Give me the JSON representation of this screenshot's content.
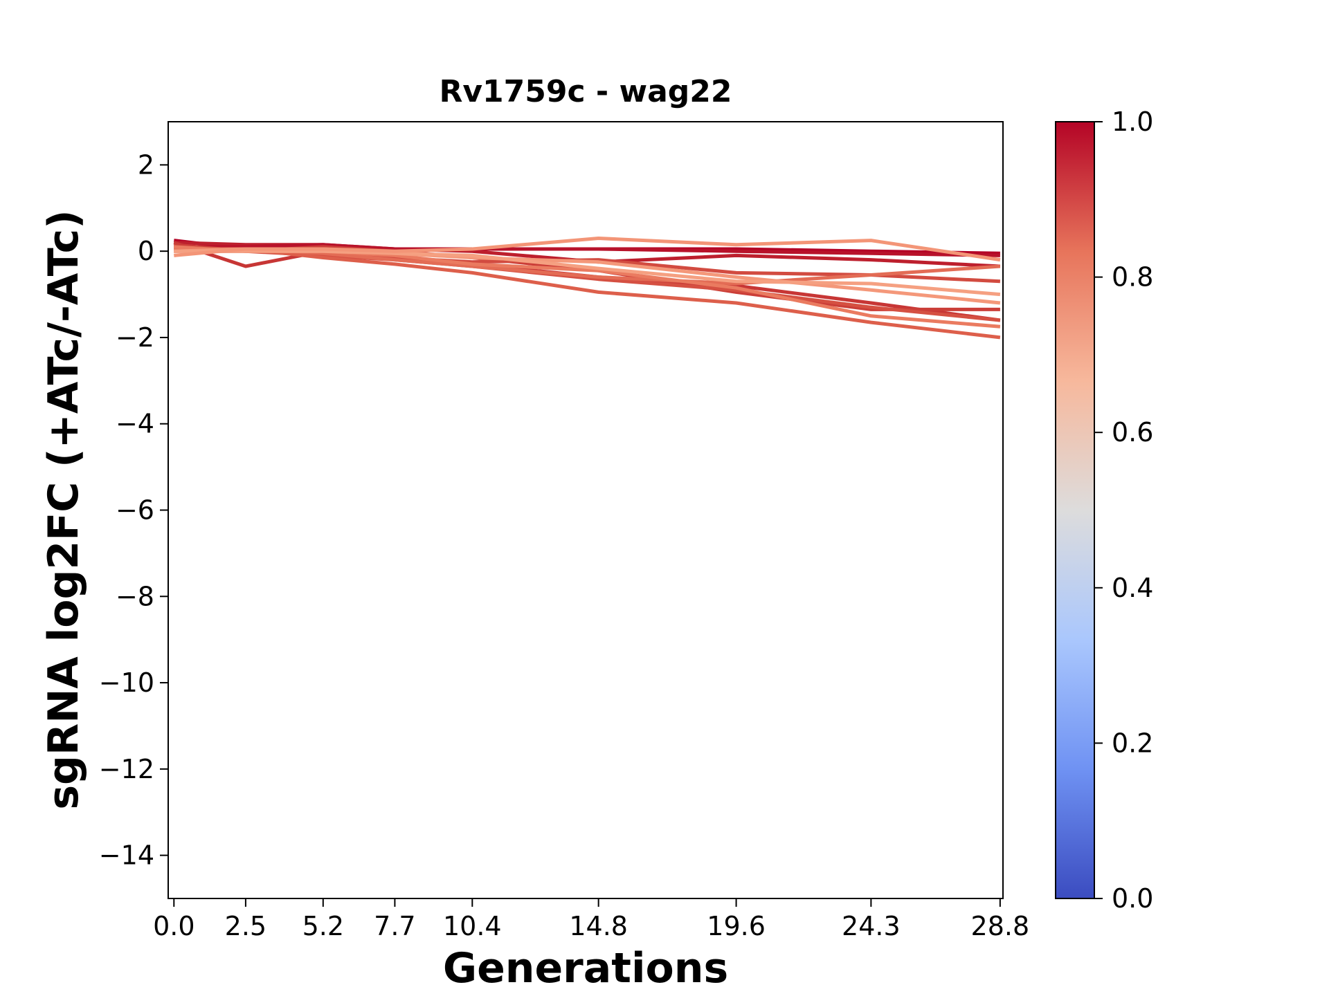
{
  "chart_data": {
    "type": "line",
    "title": "Rv1759c - wag22",
    "xlabel": "Generations",
    "ylabel": "sgRNA log2FC (+ATc/-ATc)",
    "x": [
      0.0,
      2.5,
      5.2,
      7.7,
      10.4,
      14.8,
      19.6,
      24.3,
      28.8
    ],
    "x_tick_labels": [
      "0.0",
      "2.5",
      "5.2",
      "7.7",
      "10.4",
      "14.8",
      "19.6",
      "24.3",
      "28.8"
    ],
    "xlim": [
      -0.2,
      28.9
    ],
    "ylim": [
      -15,
      3
    ],
    "y_ticks": [
      2,
      0,
      -2,
      -4,
      -6,
      -8,
      -10,
      -12,
      -14
    ],
    "y_tick_labels": [
      "2",
      "0",
      "−2",
      "−4",
      "−6",
      "−8",
      "−10",
      "−12",
      "−14"
    ],
    "grid": false,
    "colormap": "coolwarm",
    "colorbar": {
      "range": [
        0.0,
        1.0
      ],
      "ticks": [
        0.0,
        0.2,
        0.4,
        0.6,
        0.8,
        1.0
      ],
      "tick_labels": [
        "0.0",
        "0.2",
        "0.4",
        "0.6",
        "0.8",
        "1.0"
      ],
      "colors": [
        "#3b4cc0",
        "#6f92f3",
        "#aac7fd",
        "#dddcdc",
        "#f7b89c",
        "#e7745b",
        "#b40426"
      ]
    },
    "series": [
      {
        "values": [
          0.25,
          0.05,
          0.1,
          0.05,
          0.05,
          0.05,
          0.05,
          0.0,
          -0.05
        ],
        "color_value": 0.99,
        "color": "#b40426"
      },
      {
        "values": [
          0.2,
          0.15,
          0.15,
          0.05,
          0.0,
          -0.25,
          -0.1,
          -0.2,
          -0.35
        ],
        "color_value": 0.97,
        "color": "#bd1f2d"
      },
      {
        "values": [
          0.1,
          0.1,
          0.15,
          0.05,
          0.05,
          0.05,
          0.0,
          -0.05,
          -0.1
        ],
        "color_value": 0.98,
        "color": "#b8122a"
      },
      {
        "values": [
          0.2,
          -0.35,
          0.0,
          -0.15,
          -0.3,
          -0.6,
          -0.8,
          -1.2,
          -1.6
        ],
        "color_value": 0.92,
        "color": "#c73635"
      },
      {
        "values": [
          0.15,
          0.0,
          0.1,
          0.0,
          -0.15,
          -0.45,
          -0.95,
          -1.35,
          -1.35
        ],
        "color_value": 0.9,
        "color": "#cb3e38"
      },
      {
        "values": [
          0.05,
          0.05,
          -0.05,
          -0.15,
          -0.25,
          -0.2,
          -0.5,
          -0.55,
          -0.7
        ],
        "color_value": 0.88,
        "color": "#d24b40"
      },
      {
        "values": [
          0.0,
          0.0,
          -0.1,
          -0.2,
          -0.35,
          -0.65,
          -0.9,
          -1.3,
          -1.6
        ],
        "color_value": 0.86,
        "color": "#d55042"
      },
      {
        "values": [
          0.05,
          0.05,
          -0.15,
          -0.3,
          -0.5,
          -0.95,
          -1.2,
          -1.65,
          -2.0
        ],
        "color_value": 0.83,
        "color": "#dd5f4b"
      },
      {
        "values": [
          0.05,
          0.05,
          -0.05,
          -0.2,
          -0.35,
          -0.6,
          -0.75,
          -0.55,
          -0.35
        ],
        "color_value": 0.8,
        "color": "#e36c55"
      },
      {
        "values": [
          0.1,
          0.0,
          0.0,
          -0.1,
          -0.3,
          -0.45,
          -0.85,
          -1.5,
          -1.75
        ],
        "color_value": 0.76,
        "color": "#ea7b60"
      },
      {
        "values": [
          0.0,
          0.05,
          0.05,
          -0.05,
          -0.15,
          -0.25,
          -0.6,
          -0.9,
          -1.2
        ],
        "color_value": 0.7,
        "color": "#f4987a"
      },
      {
        "values": [
          0.0,
          0.0,
          0.0,
          -0.05,
          -0.1,
          -0.4,
          -0.7,
          -0.75,
          -1.0
        ],
        "color_value": 0.68,
        "color": "#f5a081"
      },
      {
        "values": [
          -0.1,
          0.05,
          0.05,
          0.0,
          0.05,
          0.3,
          0.15,
          0.25,
          -0.2
        ],
        "color_value": 0.72,
        "color": "#f39577"
      }
    ]
  }
}
